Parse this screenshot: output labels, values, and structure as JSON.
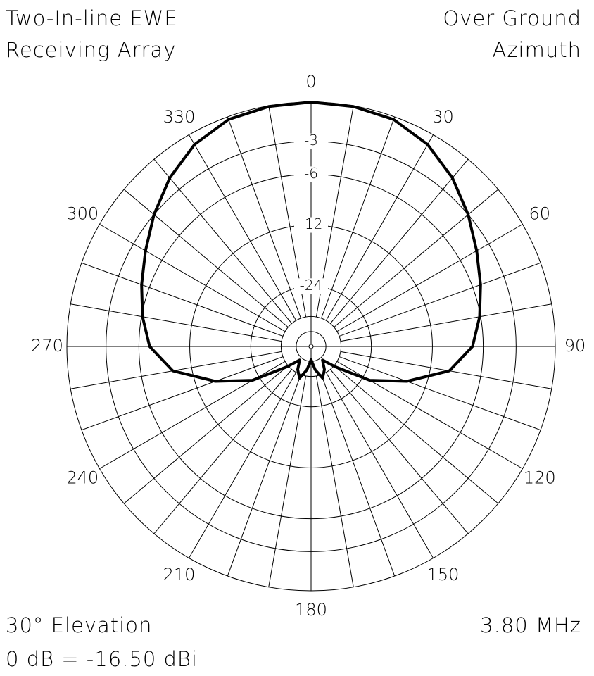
{
  "chart_data": {
    "type": "polar",
    "title": "Two-In-line EWE",
    "subtitle": "Receiving Array",
    "annotations": [
      "Over Ground",
      "Azimuth",
      "30° Elevation",
      "3.80 MHz",
      "0 dB = -16.50 dBi"
    ],
    "rscale": "arrl",
    "rmax": 0,
    "rticks": [
      -3,
      -6,
      -12,
      -24
    ],
    "minor_rticks": [
      -36,
      -48
    ],
    "angle_step": 10,
    "angle_ticks": [
      0,
      30,
      60,
      90,
      120,
      150,
      180,
      210,
      240,
      270,
      300,
      330
    ],
    "angles": [
      0,
      10,
      20,
      30,
      40,
      50,
      60,
      70,
      80,
      90,
      100,
      110,
      120,
      130,
      140,
      150,
      160,
      170,
      180,
      190,
      200,
      210,
      220,
      230,
      240,
      250,
      260,
      270,
      280,
      290,
      300,
      310,
      320,
      330,
      340,
      350
    ],
    "series": [
      {
        "color": "#000000",
        "values": [
          0,
          -0.05,
          -0.2,
          -0.8,
          -1.8,
          -3.0,
          -4.2,
          -5.2,
          -6.1,
          -7.1,
          -9.5,
          -15,
          -22,
          -35,
          -45,
          -38,
          -34,
          -40,
          -50,
          -40,
          -34,
          -38,
          -45,
          -35,
          -22,
          -15,
          -9.5,
          -7.1,
          -6.1,
          -5.2,
          -4.2,
          -3.0,
          -1.8,
          -0.8,
          -0.2,
          -0.05
        ]
      }
    ]
  }
}
